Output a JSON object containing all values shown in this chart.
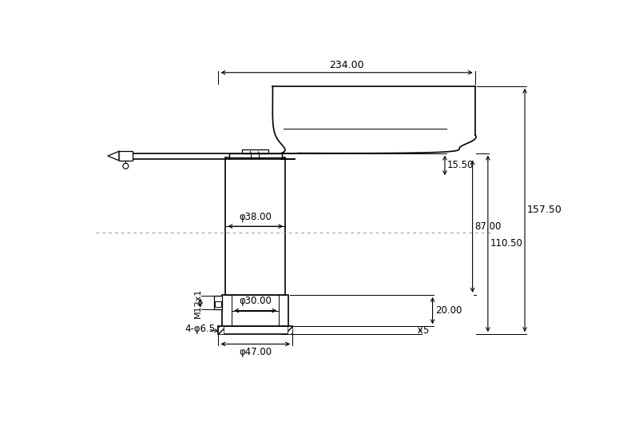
{
  "bg_color": "#ffffff",
  "line_color": "#000000",
  "dim_color": "#000000",
  "dot_color": "#999999",
  "labels": {
    "width_total": "234.00",
    "height_total": "157.50",
    "height_110": "110.50",
    "height_87": "87.00",
    "height_15": "15.50",
    "height_20": "20.00",
    "height_5": "5",
    "dia_38": "φ38.00",
    "dia_30": "φ30.00",
    "dia_47": "φ47.00",
    "thread": "M12x1",
    "holes": "4-φ6.5"
  }
}
